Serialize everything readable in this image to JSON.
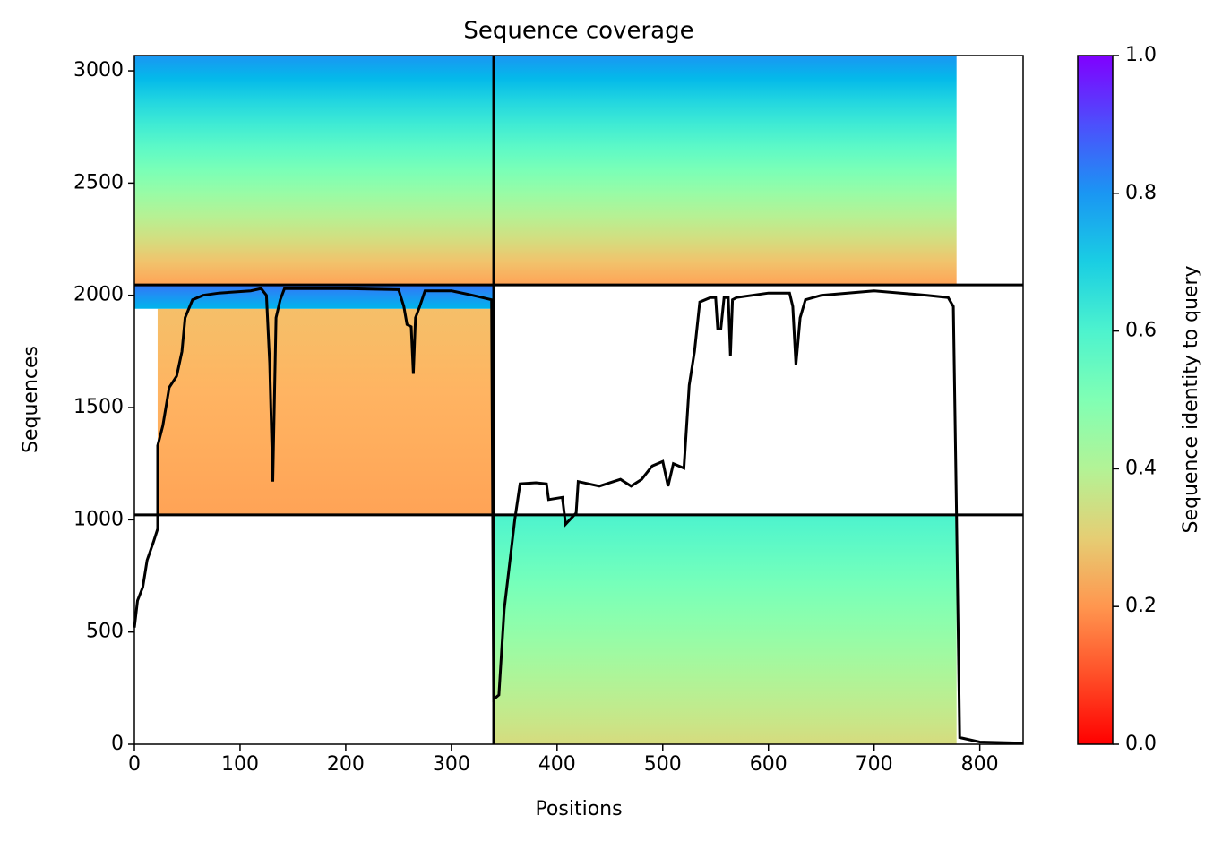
{
  "chart_data": {
    "type": "coverage",
    "title": "Sequence coverage",
    "x_label": "Positions",
    "y_label": "Sequences",
    "xlim": [
      0,
      841
    ],
    "xticks": [
      0,
      100,
      200,
      300,
      400,
      500,
      600,
      700,
      800
    ],
    "ylim": [
      0,
      3068
    ],
    "yticks": [
      0,
      500,
      1000,
      1500,
      2000,
      2500,
      3000
    ],
    "blocks": [
      {
        "x": [
          22,
          340
        ],
        "y": [
          1022,
          1940
        ],
        "identity": [
          0.22,
          0.27
        ]
      },
      {
        "x": [
          0,
          340
        ],
        "y": [
          1940,
          2046
        ],
        "identity": [
          0.75,
          0.85
        ]
      },
      {
        "x": [
          340,
          778
        ],
        "y": [
          0,
          1022
        ],
        "identity": [
          0.33,
          0.6
        ]
      },
      {
        "x": [
          0,
          778
        ],
        "y": [
          2046,
          3068
        ],
        "identity": [
          0.22,
          0.8
        ]
      }
    ],
    "coverage": {
      "color": "#000000",
      "x": [
        0,
        3,
        8,
        12,
        18,
        22,
        22,
        27,
        33,
        40,
        45,
        48,
        55,
        65,
        80,
        110,
        120,
        125,
        128,
        131,
        134,
        138,
        142,
        160,
        200,
        250,
        255,
        258,
        262,
        264,
        266,
        270,
        275,
        300,
        320,
        338,
        340,
        345,
        350,
        355,
        360,
        365,
        380,
        390,
        392,
        405,
        408,
        412,
        418,
        420,
        440,
        460,
        470,
        480,
        490,
        500,
        505,
        510,
        520,
        525,
        530,
        535,
        545,
        550,
        552,
        555,
        558,
        562,
        564,
        566,
        570,
        600,
        620,
        623,
        626,
        630,
        635,
        650,
        700,
        750,
        770,
        775,
        778,
        781,
        800,
        841
      ],
      "values": [
        520,
        640,
        700,
        820,
        900,
        960,
        1330,
        1420,
        1590,
        1640,
        1750,
        1900,
        1980,
        2000,
        2010,
        2020,
        2030,
        2000,
        1700,
        1170,
        1900,
        1980,
        2030,
        2030,
        2030,
        2025,
        1950,
        1870,
        1860,
        1650,
        1900,
        1950,
        2020,
        2020,
        2000,
        1980,
        200,
        220,
        600,
        800,
        1000,
        1160,
        1165,
        1160,
        1090,
        1100,
        980,
        1000,
        1030,
        1170,
        1150,
        1180,
        1150,
        1180,
        1240,
        1260,
        1150,
        1250,
        1230,
        1600,
        1750,
        1970,
        1990,
        1990,
        1850,
        1850,
        1990,
        1990,
        1730,
        1980,
        1990,
        2010,
        2010,
        1950,
        1690,
        1900,
        1980,
        2000,
        2020,
        2000,
        1990,
        1950,
        1010,
        30,
        10,
        5
      ]
    },
    "boundaries": {
      "x": [
        340
      ],
      "y": [
        1022,
        2046
      ]
    },
    "colorbar": {
      "label": "Sequence identity to query",
      "lim": [
        0,
        1
      ],
      "ticks": [
        {
          "value": 0,
          "label": "0.0"
        },
        0.2,
        0.4,
        0.6,
        0.8,
        {
          "value": 1,
          "label": "1.0"
        }
      ]
    }
  }
}
